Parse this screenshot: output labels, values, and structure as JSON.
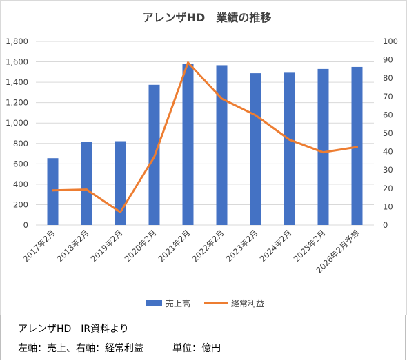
{
  "chart_data": {
    "type": "bar",
    "title": "アレンザHD　業績の推移",
    "categories": [
      "2017年2月",
      "2018年2月",
      "2019年2月",
      "2020年2月",
      "2021年2月",
      "2022年2月",
      "2023年2月",
      "2024年2月",
      "2025年2月",
      "2026年2月予想"
    ],
    "series": [
      {
        "name": "売上高",
        "type": "bar",
        "axis": "left",
        "color": "#4472c4",
        "values": [
          655,
          812,
          822,
          1375,
          1577,
          1567,
          1488,
          1493,
          1530,
          1550
        ]
      },
      {
        "name": "経常利益",
        "type": "line",
        "axis": "right",
        "color": "#ed7d31",
        "values": [
          18.9,
          19.3,
          7.0,
          37.0,
          88.5,
          68.8,
          59.8,
          46.5,
          39.6,
          42.5
        ]
      }
    ],
    "y_left": {
      "ylim": [
        0,
        1800
      ],
      "ticks": [
        "0",
        "200",
        "400",
        "600",
        "800",
        "1,000",
        "1,200",
        "1,400",
        "1,600",
        "1,800"
      ]
    },
    "y_right": {
      "ylim": [
        0,
        100
      ],
      "ticks": [
        "0",
        "10",
        "20",
        "30",
        "40",
        "50",
        "60",
        "70",
        "80",
        "90",
        "100"
      ]
    },
    "grid": true,
    "legend": "bottom"
  },
  "source": {
    "line1": "アレンザHD　IR資料より",
    "line2": "左軸：売上、右軸：経常利益　　　単位：億円"
  }
}
